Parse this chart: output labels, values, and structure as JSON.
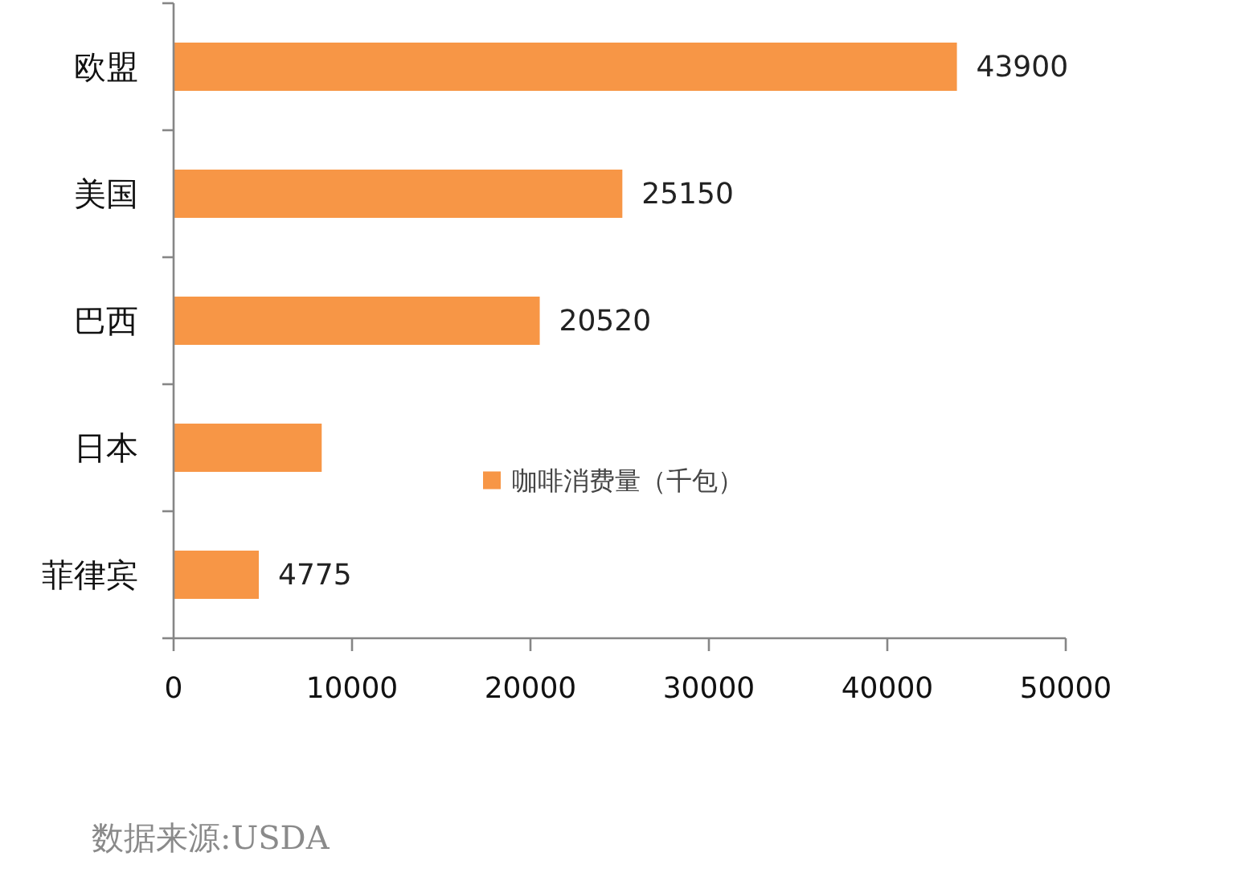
{
  "chart_data": {
    "type": "bar",
    "orientation": "horizontal",
    "categories": [
      "欧盟",
      "美国",
      "巴西",
      "日本",
      "菲律宾"
    ],
    "series": [
      {
        "name": "咖啡消费量（千包）",
        "color": "#f79646",
        "values": [
          43900,
          25150,
          20520,
          8300,
          4775
        ],
        "value_labels": [
          "43900",
          "25150",
          "20520",
          null,
          "4775"
        ]
      }
    ],
    "xlim": [
      0,
      50000
    ],
    "xticks": [
      0,
      10000,
      20000,
      30000,
      40000,
      50000
    ],
    "legend": "bottom",
    "annotations": [
      "数据来源:USDA"
    ]
  }
}
